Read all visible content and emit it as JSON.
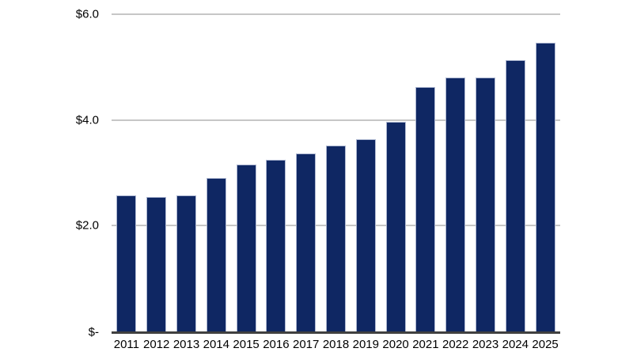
{
  "chart_data": {
    "type": "bar",
    "title": "",
    "xlabel": "",
    "ylabel": "",
    "categories": [
      "2011",
      "2012",
      "2013",
      "2014",
      "2015",
      "2016",
      "2017",
      "2018",
      "2019",
      "2020",
      "2021",
      "2022",
      "2023",
      "2024",
      "2025"
    ],
    "values": [
      2.58,
      2.55,
      2.58,
      2.91,
      3.16,
      3.24,
      3.36,
      3.51,
      3.63,
      3.96,
      4.63,
      4.81,
      4.81,
      5.13,
      5.46
    ],
    "ylim": [
      0,
      6
    ],
    "yticks": [
      {
        "value": 0,
        "label": "$-"
      },
      {
        "value": 2,
        "label": "$2.0"
      },
      {
        "value": 4,
        "label": "$4.0"
      },
      {
        "value": 6,
        "label": "$6.0"
      }
    ],
    "grid": true,
    "legend": false,
    "colors": {
      "bar_fill": "#0F2763",
      "bar_border": "#AEB8D2",
      "gridline": "#C6C6C6",
      "axis_line": "#404040",
      "tick_text": "#000000",
      "background": "#FFFFFF"
    }
  }
}
